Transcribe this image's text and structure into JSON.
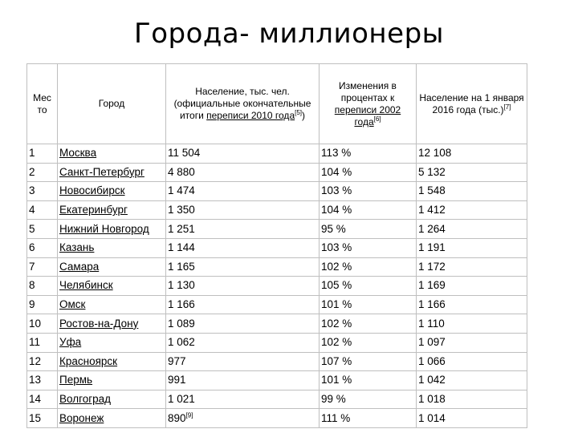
{
  "title": "Города- миллионеры",
  "table": {
    "headers": {
      "rank": "Мес то",
      "city": "Город",
      "pop_pre": "Население, тыс. чел. (официальные окончательные итоги ",
      "pop_link": "переписи 2010 года",
      "pop_ref": "[5]",
      "pop_post": ")",
      "change_pre": "Изменения в процентах к ",
      "change_link": "переписи 2002 года",
      "change_ref": "[6]",
      "current_pre": "Население на 1 января 2016 года (тыс.)",
      "current_ref": "[7]"
    },
    "rows": [
      {
        "rank": "1",
        "city": "Москва",
        "pop": "11 504",
        "pop_ref": "",
        "change": "113 %",
        "current": "12 108"
      },
      {
        "rank": "2",
        "city": "Санкт-Петербург",
        "pop": "4 880",
        "pop_ref": "",
        "change": "104 %",
        "current": "5 132"
      },
      {
        "rank": "3",
        "city": "Новосибирск",
        "pop": "1 474",
        "pop_ref": "",
        "change": "103 %",
        "current": "1 548"
      },
      {
        "rank": "4",
        "city": "Екатеринбург",
        "pop": "1 350",
        "pop_ref": "",
        "change": "104 %",
        "current": "1 412"
      },
      {
        "rank": "5",
        "city": "Нижний Новгород",
        "pop": "1 251",
        "pop_ref": "",
        "change": "95 %",
        "current": "1 264"
      },
      {
        "rank": "6",
        "city": "Казань",
        "pop": "1 144",
        "pop_ref": "",
        "change": "103 %",
        "current": "1 191"
      },
      {
        "rank": "7",
        "city": "Самара",
        "pop": "1 165",
        "pop_ref": "",
        "change": "102 %",
        "current": "1 172"
      },
      {
        "rank": "8",
        "city": "Челябинск",
        "pop": "1 130",
        "pop_ref": "",
        "change": "105 %",
        "current": "1 169"
      },
      {
        "rank": "9",
        "city": "Омск",
        "pop": "1 166",
        "pop_ref": "",
        "change": "101 %",
        "current": "1 166"
      },
      {
        "rank": "10",
        "city": "Ростов-на-Дону",
        "pop": "1 089",
        "pop_ref": "",
        "change": "102 %",
        "current": "1 110"
      },
      {
        "rank": "11",
        "city": "Уфа",
        "pop": "1 062",
        "pop_ref": "",
        "change": "102 %",
        "current": "1 097"
      },
      {
        "rank": "12",
        "city": "Красноярск",
        "pop": "977",
        "pop_ref": "",
        "change": "107 %",
        "current": "1 066"
      },
      {
        "rank": "13",
        "city": "Пермь",
        "pop": "991",
        "pop_ref": "",
        "change": "101 %",
        "current": "1 042"
      },
      {
        "rank": "14",
        "city": "Волгоград",
        "pop": "1 021",
        "pop_ref": "",
        "change": "99 %",
        "current": "1 018"
      },
      {
        "rank": "15",
        "city": "Воронеж",
        "pop": "890",
        "pop_ref": "[9]",
        "change": "111 %",
        "current": "1 014"
      }
    ]
  }
}
